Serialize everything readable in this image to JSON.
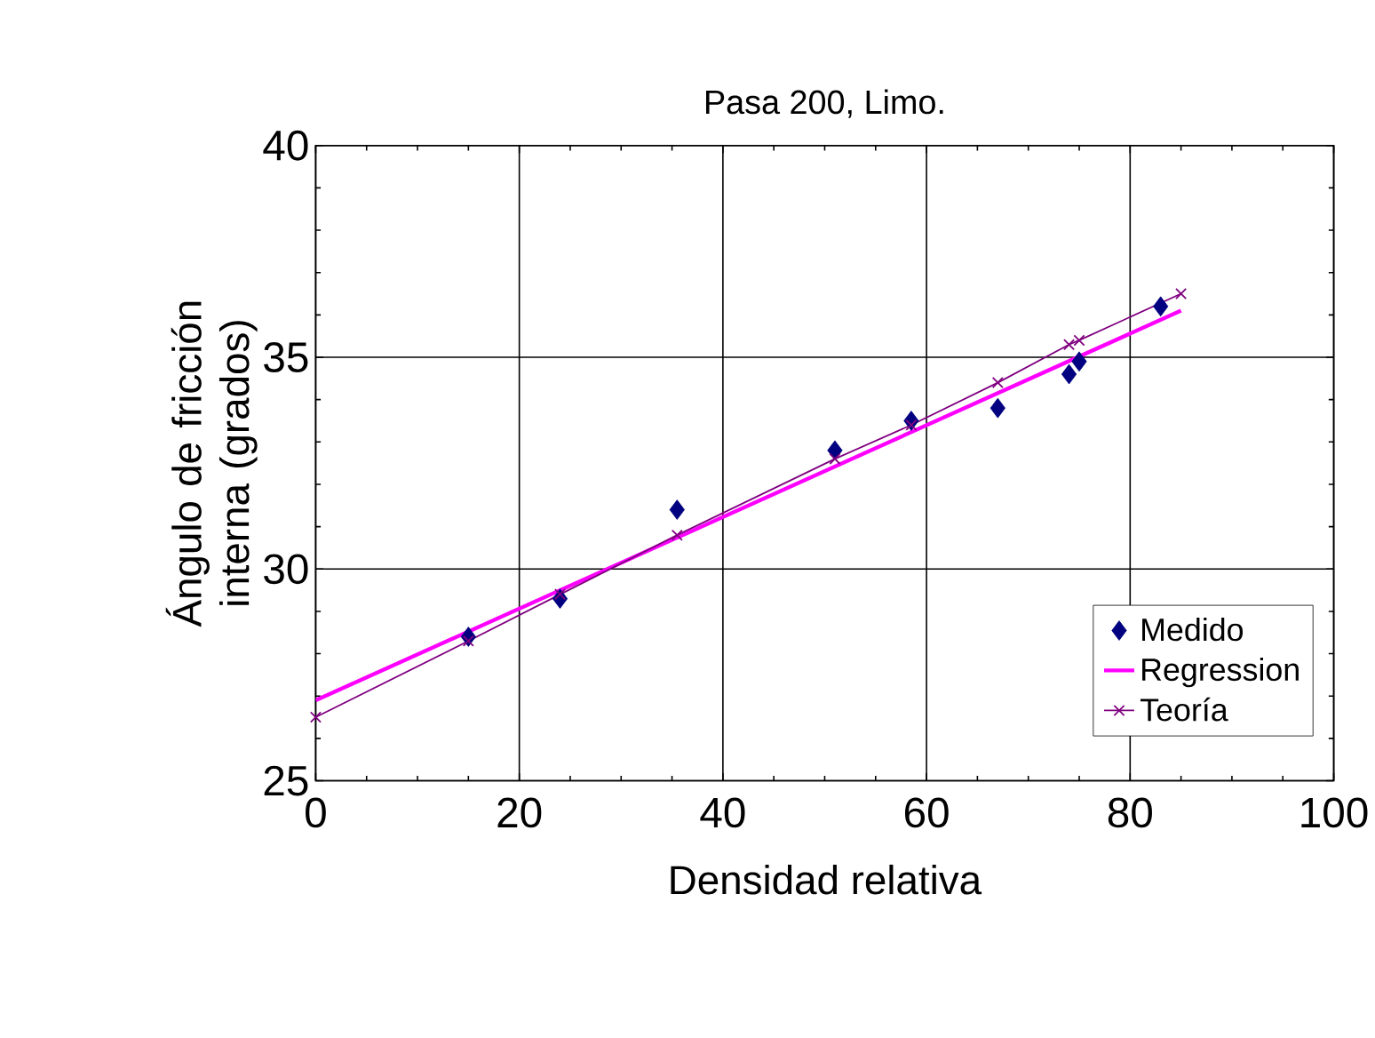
{
  "chart_data": {
    "type": "scatter",
    "title": "Pasa 200, Limo.",
    "xlabel": "Densidad relativa",
    "ylabel": "Ángulo de fricción interna (grados)",
    "xlim": [
      0,
      100
    ],
    "xticks": [
      0,
      20,
      40,
      60,
      80,
      100
    ],
    "ylim": [
      25,
      40
    ],
    "yticks": [
      25,
      30,
      35,
      40
    ],
    "grid": true,
    "legend": "bottom right",
    "series": [
      {
        "name": "Medido",
        "marker": "diamond",
        "color": "#000080",
        "x": [
          15,
          24,
          35.5,
          51,
          58.5,
          67,
          74,
          75,
          83
        ],
        "values": [
          28.4,
          29.3,
          31.4,
          32.8,
          33.5,
          33.8,
          34.6,
          34.9,
          36.2
        ]
      },
      {
        "name": "Regression",
        "type": "line",
        "marker": "none",
        "color": "#ff00ff",
        "x": [
          0,
          85
        ],
        "values": [
          26.9,
          36.1
        ]
      },
      {
        "name": "Teoría",
        "type": "line",
        "marker": "cross",
        "color": "#800080",
        "x": [
          0,
          15,
          24,
          35.5,
          51,
          58.5,
          67,
          74,
          75,
          85
        ],
        "values": [
          26.5,
          28.3,
          29.4,
          30.8,
          32.6,
          33.4,
          34.4,
          35.3,
          35.4,
          36.5
        ]
      }
    ]
  }
}
